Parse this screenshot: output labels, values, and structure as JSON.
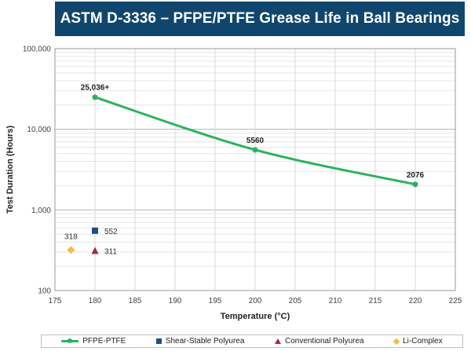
{
  "chart_data": {
    "type": "line",
    "title": "ASTM D-3336 – PFPE/PTFE Grease Life in Ball Bearings",
    "xlabel": "Temperature (°C)",
    "ylabel": "Test Duration (Hours)",
    "xlim": [
      175,
      225
    ],
    "ylim": [
      100,
      100000
    ],
    "y_scale": "log",
    "grid": true,
    "legend_position": "bottom",
    "x_ticks": [
      "175",
      "180",
      "185",
      "190",
      "195",
      "200",
      "205",
      "210",
      "215",
      "220",
      "225"
    ],
    "y_ticks": [
      "100",
      "1,000",
      "10,000",
      "100,000"
    ],
    "series": [
      {
        "name": "PFPE-PTFE",
        "type": "line",
        "marker": "circle",
        "color": "#2bb25f",
        "x": [
          180,
          200,
          220
        ],
        "y": [
          25036,
          5560,
          2076
        ],
        "labels": [
          "25,036+",
          "5560",
          "2076"
        ]
      },
      {
        "name": "Shear-Stable Polyurea",
        "type": "scatter",
        "marker": "square",
        "color": "#1c4f86",
        "x": [
          180
        ],
        "y": [
          552
        ],
        "labels": [
          "552"
        ]
      },
      {
        "name": "Conventional Polyurea",
        "type": "scatter",
        "marker": "triangle",
        "color": "#a8283a",
        "x": [
          180
        ],
        "y": [
          311
        ],
        "labels": [
          "311"
        ]
      },
      {
        "name": "Li-Complex",
        "type": "scatter",
        "marker": "diamond",
        "color": "#f0c040",
        "x": [
          177
        ],
        "y": [
          318
        ],
        "labels": [
          "318"
        ]
      }
    ]
  }
}
